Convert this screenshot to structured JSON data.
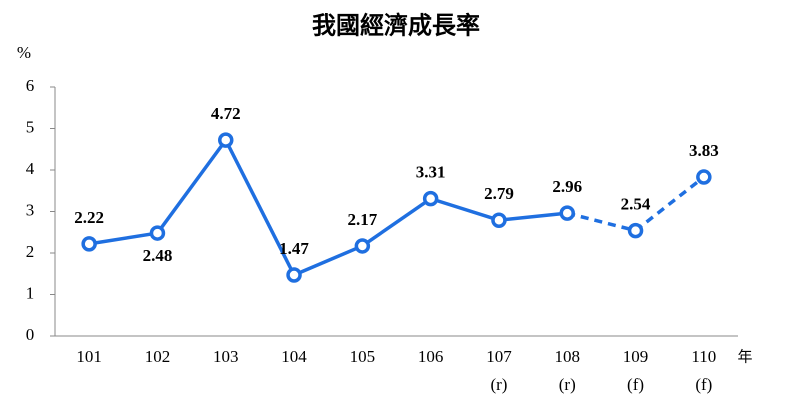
{
  "chart_data": {
    "type": "line",
    "title": "我國經濟成長率",
    "y_label": "%",
    "x_label": "年",
    "categories": [
      "101",
      "102",
      "103",
      "104",
      "105",
      "106",
      "107",
      "108",
      "109",
      "110"
    ],
    "category_notes": [
      null,
      null,
      null,
      null,
      null,
      null,
      "(r)",
      "(r)",
      "(f)",
      "(f)"
    ],
    "series": [
      {
        "color": "#1f6fe0",
        "values": [
          2.22,
          2.48,
          4.72,
          1.47,
          2.17,
          3.31,
          2.79,
          2.96,
          2.54,
          3.83
        ],
        "segment_styles": [
          "solid",
          "solid",
          "solid",
          "solid",
          "solid",
          "solid",
          "solid",
          "dashed",
          "dashed"
        ],
        "value_label_positions": [
          "above",
          "below",
          "above",
          "above",
          "above",
          "above",
          "above",
          "above",
          "above",
          "above"
        ]
      }
    ],
    "ylim": [
      0,
      6
    ],
    "yticks": [
      0,
      1,
      2,
      3,
      4,
      5,
      6
    ],
    "grid": false
  }
}
